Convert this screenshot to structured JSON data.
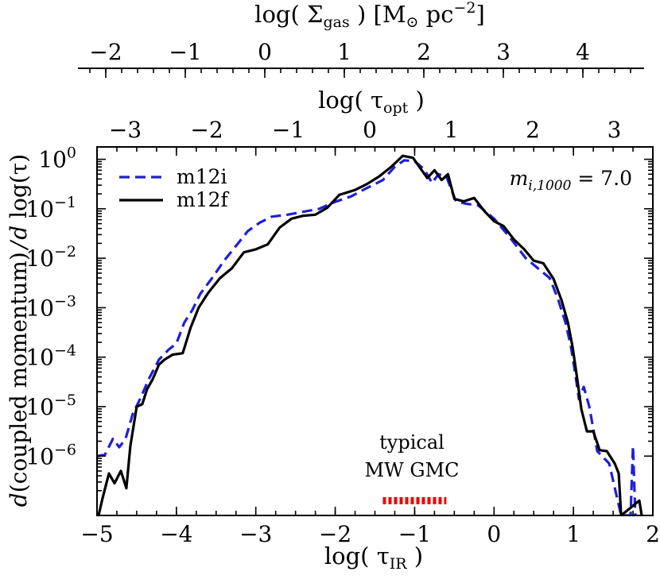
{
  "chart_data": {
    "type": "line",
    "top_axis_1": {
      "label_main": "log( Σ",
      "label_sub": "gas",
      "label_rest": " ) [M",
      "label_sun": "⊙",
      "label_pc": " pc",
      "label_exp": "−2",
      "label_close": "]",
      "ticks": [
        {
          "value": -2,
          "label": "−2"
        },
        {
          "value": -1,
          "label": "−1"
        },
        {
          "value": 0,
          "label": "0"
        },
        {
          "value": 1,
          "label": "1"
        },
        {
          "value": 2,
          "label": "2"
        },
        {
          "value": 3,
          "label": "3"
        },
        {
          "value": 4,
          "label": "4"
        }
      ]
    },
    "top_axis_2": {
      "label_main": "log( τ",
      "label_sub": "opt",
      "label_close": " )",
      "ticks": [
        {
          "value": -3,
          "label": "−3"
        },
        {
          "value": -2,
          "label": "−2"
        },
        {
          "value": -1,
          "label": "−1"
        },
        {
          "value": 0,
          "label": "0"
        },
        {
          "value": 1,
          "label": "1"
        },
        {
          "value": 2,
          "label": "2"
        },
        {
          "value": 3,
          "label": "3"
        }
      ]
    },
    "x_axis": {
      "label_main": "log( τ",
      "label_sub": "IR",
      "label_close": " )",
      "range": [
        -5,
        2
      ],
      "ticks": [
        {
          "value": -5,
          "label": "−5"
        },
        {
          "value": -4,
          "label": "−4"
        },
        {
          "value": -3,
          "label": "−3"
        },
        {
          "value": -2,
          "label": "−2"
        },
        {
          "value": -1,
          "label": "−1"
        },
        {
          "value": 0,
          "label": "0"
        },
        {
          "value": 1,
          "label": "1"
        },
        {
          "value": 2,
          "label": "2"
        }
      ]
    },
    "y_axis": {
      "label": "d(coupled momentum) / d log(τ)",
      "label_d1": "d",
      "label_mid": "(coupled momentum)",
      "label_slash": "/",
      "label_d2": "d",
      "label_end": " log(τ)",
      "scale": "log",
      "range_log10": [
        -7.2,
        0.25
      ],
      "ticks": [
        {
          "value": 1,
          "base": "10",
          "exp": "0"
        },
        {
          "value": 0.1,
          "base": "10",
          "exp": "−1"
        },
        {
          "value": 0.01,
          "base": "10",
          "exp": "−2"
        },
        {
          "value": 0.001,
          "base": "10",
          "exp": "−3"
        },
        {
          "value": 0.0001,
          "base": "10",
          "exp": "−4"
        },
        {
          "value": 1e-05,
          "base": "10",
          "exp": "−5"
        },
        {
          "value": 1e-06,
          "base": "10",
          "exp": "−6"
        }
      ]
    },
    "series": [
      {
        "name": "m12i",
        "color": "#1f1fd6",
        "dash": "dashed",
        "points": [
          [
            -5.0,
            -6.0
          ],
          [
            -4.9,
            -5.97
          ],
          [
            -4.8,
            -5.65
          ],
          [
            -4.72,
            -5.82
          ],
          [
            -4.64,
            -5.65
          ],
          [
            -4.55,
            -5.15
          ],
          [
            -4.45,
            -4.82
          ],
          [
            -4.35,
            -4.45
          ],
          [
            -4.22,
            -4.05
          ],
          [
            -4.1,
            -3.85
          ],
          [
            -4.0,
            -3.72
          ],
          [
            -3.9,
            -3.3
          ],
          [
            -3.8,
            -3.05
          ],
          [
            -3.7,
            -2.72
          ],
          [
            -3.55,
            -2.4
          ],
          [
            -3.4,
            -2.05
          ],
          [
            -3.25,
            -1.75
          ],
          [
            -3.1,
            -1.45
          ],
          [
            -2.95,
            -1.28
          ],
          [
            -2.8,
            -1.16
          ],
          [
            -2.6,
            -1.12
          ],
          [
            -2.4,
            -1.06
          ],
          [
            -2.2,
            -1.0
          ],
          [
            -2.0,
            -0.86
          ],
          [
            -1.8,
            -0.75
          ],
          [
            -1.6,
            -0.58
          ],
          [
            -1.4,
            -0.42
          ],
          [
            -1.25,
            -0.15
          ],
          [
            -1.13,
            -0.02
          ],
          [
            -1.0,
            -0.04
          ],
          [
            -0.88,
            -0.2
          ],
          [
            -0.78,
            -0.48
          ],
          [
            -0.7,
            -0.3
          ],
          [
            -0.6,
            -0.35
          ],
          [
            -0.48,
            -0.85
          ],
          [
            -0.35,
            -0.9
          ],
          [
            -0.2,
            -0.93
          ],
          [
            0.0,
            -1.2
          ],
          [
            0.2,
            -1.58
          ],
          [
            0.4,
            -2.0
          ],
          [
            0.55,
            -2.2
          ],
          [
            0.7,
            -2.4
          ],
          [
            0.8,
            -2.8
          ],
          [
            0.9,
            -3.3
          ],
          [
            0.97,
            -3.8
          ],
          [
            1.02,
            -4.3
          ],
          [
            1.07,
            -4.85
          ],
          [
            1.13,
            -4.6
          ],
          [
            1.2,
            -5.0
          ],
          [
            1.3,
            -5.9
          ],
          [
            1.45,
            -6.15
          ],
          [
            1.6,
            -7.2
          ],
          [
            1.72,
            -7.2
          ],
          [
            1.75,
            -5.8
          ],
          [
            1.78,
            -7.2
          ]
        ]
      },
      {
        "name": "m12f",
        "color": "#000000",
        "dash": "solid",
        "points": [
          [
            -4.98,
            -7.2
          ],
          [
            -4.93,
            -6.85
          ],
          [
            -4.85,
            -6.35
          ],
          [
            -4.78,
            -6.55
          ],
          [
            -4.7,
            -6.3
          ],
          [
            -4.63,
            -6.65
          ],
          [
            -4.58,
            -5.8
          ],
          [
            -4.5,
            -5.0
          ],
          [
            -4.43,
            -4.95
          ],
          [
            -4.37,
            -4.65
          ],
          [
            -4.3,
            -4.45
          ],
          [
            -4.22,
            -4.15
          ],
          [
            -4.15,
            -4.05
          ],
          [
            -4.05,
            -3.95
          ],
          [
            -3.92,
            -3.92
          ],
          [
            -3.82,
            -3.4
          ],
          [
            -3.72,
            -3.0
          ],
          [
            -3.6,
            -2.7
          ],
          [
            -3.45,
            -2.4
          ],
          [
            -3.3,
            -2.2
          ],
          [
            -3.15,
            -1.88
          ],
          [
            -3.0,
            -1.82
          ],
          [
            -2.85,
            -1.72
          ],
          [
            -2.7,
            -1.38
          ],
          [
            -2.55,
            -1.2
          ],
          [
            -2.4,
            -1.14
          ],
          [
            -2.25,
            -1.12
          ],
          [
            -2.1,
            -0.98
          ],
          [
            -1.95,
            -0.72
          ],
          [
            -1.75,
            -0.62
          ],
          [
            -1.6,
            -0.5
          ],
          [
            -1.45,
            -0.35
          ],
          [
            -1.3,
            -0.16
          ],
          [
            -1.15,
            0.07
          ],
          [
            -1.02,
            0.03
          ],
          [
            -0.92,
            -0.2
          ],
          [
            -0.84,
            -0.38
          ],
          [
            -0.75,
            -0.22
          ],
          [
            -0.66,
            -0.42
          ],
          [
            -0.58,
            -0.3
          ],
          [
            -0.5,
            -0.8
          ],
          [
            -0.38,
            -0.85
          ],
          [
            -0.25,
            -0.78
          ],
          [
            -0.12,
            -1.05
          ],
          [
            0.0,
            -1.25
          ],
          [
            0.12,
            -1.35
          ],
          [
            0.25,
            -1.62
          ],
          [
            0.38,
            -1.82
          ],
          [
            0.5,
            -2.05
          ],
          [
            0.62,
            -2.1
          ],
          [
            0.75,
            -2.42
          ],
          [
            0.85,
            -2.85
          ],
          [
            0.93,
            -3.3
          ],
          [
            0.99,
            -3.8
          ],
          [
            1.04,
            -4.35
          ],
          [
            1.1,
            -5.05
          ],
          [
            1.17,
            -5.5
          ],
          [
            1.25,
            -5.5
          ],
          [
            1.33,
            -5.88
          ],
          [
            1.42,
            -5.9
          ],
          [
            1.52,
            -6.15
          ],
          [
            1.57,
            -6.35
          ],
          [
            1.6,
            -7.2
          ],
          [
            1.83,
            -6.9
          ],
          [
            1.86,
            -7.2
          ]
        ]
      }
    ],
    "annotation": {
      "line1": "typical",
      "line2": "MW GMC",
      "color": "#ee0000",
      "bar_x": [
        -1.4,
        -0.6
      ],
      "bar_y_log10": -6.9
    },
    "legend": {
      "placement": "top-left",
      "entries": [
        "m12i",
        "m12f"
      ]
    },
    "param_text": {
      "m": "m",
      "sub": "i,1000",
      "rest": " = 7.0"
    }
  }
}
